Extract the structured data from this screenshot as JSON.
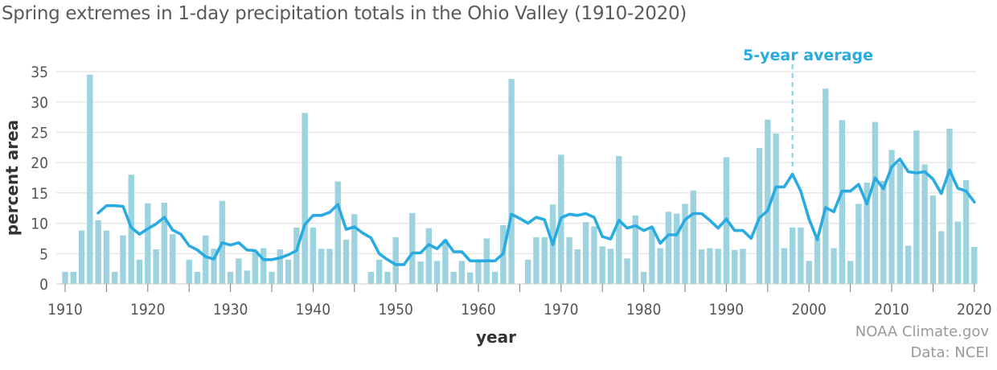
{
  "chart_data": {
    "type": "bar",
    "title": "Spring extremes in 1-day precipitation totals in the Ohio Valley (1910-2020)",
    "xlabel": "year",
    "ylabel": "percent area",
    "ylim": [
      0,
      35
    ],
    "xlim": [
      1910,
      2020
    ],
    "yticks": [
      0,
      5,
      10,
      15,
      20,
      25,
      30,
      35
    ],
    "xticks": [
      1910,
      1920,
      1930,
      1940,
      1950,
      1960,
      1970,
      1980,
      1990,
      2000,
      2010,
      2020
    ],
    "grid": true,
    "colors": {
      "bars": "#9dd3df",
      "line": "#29abe2",
      "grid": "#e3e3e3"
    },
    "legend": {
      "label": "5-year average",
      "marker_year": 1998
    },
    "series": [
      {
        "name": "percent area",
        "type": "bar",
        "x": [
          1910,
          1911,
          1912,
          1913,
          1914,
          1915,
          1916,
          1917,
          1918,
          1919,
          1920,
          1921,
          1922,
          1923,
          1924,
          1925,
          1926,
          1927,
          1928,
          1929,
          1930,
          1931,
          1932,
          1933,
          1934,
          1935,
          1936,
          1937,
          1938,
          1939,
          1940,
          1941,
          1942,
          1943,
          1944,
          1945,
          1946,
          1947,
          1948,
          1949,
          1950,
          1951,
          1952,
          1953,
          1954,
          1955,
          1956,
          1957,
          1958,
          1959,
          1960,
          1961,
          1962,
          1963,
          1964,
          1965,
          1966,
          1967,
          1968,
          1969,
          1970,
          1971,
          1972,
          1973,
          1974,
          1975,
          1976,
          1977,
          1978,
          1979,
          1980,
          1981,
          1982,
          1983,
          1984,
          1985,
          1986,
          1987,
          1988,
          1989,
          1990,
          1991,
          1992,
          1993,
          1994,
          1995,
          1996,
          1997,
          1998,
          1999,
          2000,
          2001,
          2002,
          2003,
          2004,
          2005,
          2006,
          2007,
          2008,
          2009,
          2010,
          2011,
          2012,
          2013,
          2014,
          2015,
          2016,
          2017,
          2018,
          2019,
          2020
        ],
        "values": [
          2.0,
          2.0,
          8.8,
          34.5,
          10.5,
          8.8,
          2.0,
          8.0,
          18.0,
          4.0,
          13.3,
          5.7,
          13.4,
          8.2,
          0,
          4.0,
          2.0,
          8.0,
          5.8,
          13.7,
          2.0,
          4.2,
          2.2,
          5.5,
          5.9,
          2.0,
          5.7,
          4.0,
          9.3,
          28.2,
          9.3,
          5.8,
          5.8,
          16.9,
          7.3,
          11.5,
          0,
          2.0,
          4.0,
          2.0,
          7.7,
          0,
          11.7,
          3.7,
          9.2,
          3.8,
          7.3,
          2.0,
          3.8,
          1.9,
          3.8,
          7.5,
          2.0,
          9.7,
          33.8,
          0,
          4.0,
          7.7,
          7.7,
          13.1,
          21.3,
          7.7,
          5.7,
          10.2,
          9.5,
          6.2,
          5.8,
          21.1,
          4.2,
          11.3,
          2.0,
          9.2,
          5.9,
          11.9,
          11.6,
          13.2,
          15.4,
          5.7,
          5.9,
          5.8,
          20.9,
          5.6,
          5.8,
          0,
          22.4,
          27.1,
          24.8,
          5.9,
          9.3,
          9.3,
          3.8,
          7.5,
          32.2,
          5.9,
          27.0,
          3.8,
          13.2,
          16.7,
          26.7,
          17.0,
          22.1,
          19.9,
          6.3,
          25.3,
          19.7,
          14.6,
          8.7,
          25.6,
          10.3,
          17.1,
          6.1
        ]
      },
      {
        "name": "5-year average",
        "type": "line",
        "x": [
          1914,
          1915,
          1916,
          1917,
          1918,
          1919,
          1920,
          1921,
          1922,
          1923,
          1924,
          1925,
          1926,
          1927,
          1928,
          1929,
          1930,
          1931,
          1932,
          1933,
          1934,
          1935,
          1936,
          1937,
          1938,
          1939,
          1940,
          1941,
          1942,
          1943,
          1944,
          1945,
          1946,
          1947,
          1948,
          1949,
          1950,
          1951,
          1952,
          1953,
          1954,
          1955,
          1956,
          1957,
          1958,
          1959,
          1960,
          1961,
          1962,
          1963,
          1964,
          1965,
          1966,
          1967,
          1968,
          1969,
          1970,
          1971,
          1972,
          1973,
          1974,
          1975,
          1976,
          1977,
          1978,
          1979,
          1980,
          1981,
          1982,
          1983,
          1984,
          1985,
          1986,
          1987,
          1988,
          1989,
          1990,
          1991,
          1992,
          1993,
          1994,
          1995,
          1996,
          1997,
          1998,
          1999,
          2000,
          2001,
          2002,
          2003,
          2004,
          2005,
          2006,
          2007,
          2008,
          2009,
          2010,
          2011,
          2012,
          2013,
          2014,
          2015,
          2016,
          2017,
          2018,
          2019,
          2020
        ],
        "values": [
          11.7,
          12.9,
          12.9,
          12.8,
          9.3,
          8.2,
          9.1,
          9.9,
          11.0,
          8.9,
          8.2,
          6.3,
          5.6,
          4.5,
          4.1,
          6.8,
          6.4,
          6.8,
          5.6,
          5.5,
          4.0,
          4.0,
          4.3,
          4.8,
          5.5,
          9.8,
          11.3,
          11.3,
          11.8,
          13.1,
          9.0,
          9.4,
          8.4,
          7.6,
          5.0,
          4.0,
          3.2,
          3.2,
          5.1,
          5.1,
          6.5,
          5.8,
          7.2,
          5.3,
          5.3,
          3.8,
          3.8,
          3.8,
          3.8,
          5.0,
          11.5,
          10.8,
          10.0,
          11.0,
          10.6,
          6.5,
          10.9,
          11.5,
          11.3,
          11.6,
          11.0,
          7.8,
          7.4,
          10.5,
          9.2,
          9.6,
          8.8,
          9.4,
          6.7,
          8.1,
          8.1,
          10.6,
          11.6,
          11.6,
          10.5,
          9.2,
          10.7,
          8.8,
          8.8,
          7.5,
          10.9,
          12.1,
          16.0,
          16.0,
          18.1,
          15.3,
          10.7,
          7.3,
          12.6,
          11.9,
          15.3,
          15.3,
          16.4,
          13.2,
          17.5,
          15.7,
          19.3,
          20.6,
          18.5,
          18.3,
          18.5,
          17.3,
          14.9,
          18.8,
          15.8,
          15.3,
          13.5
        ]
      }
    ],
    "credits": [
      "NOAA Climate.gov",
      "Data: NCEI"
    ]
  }
}
